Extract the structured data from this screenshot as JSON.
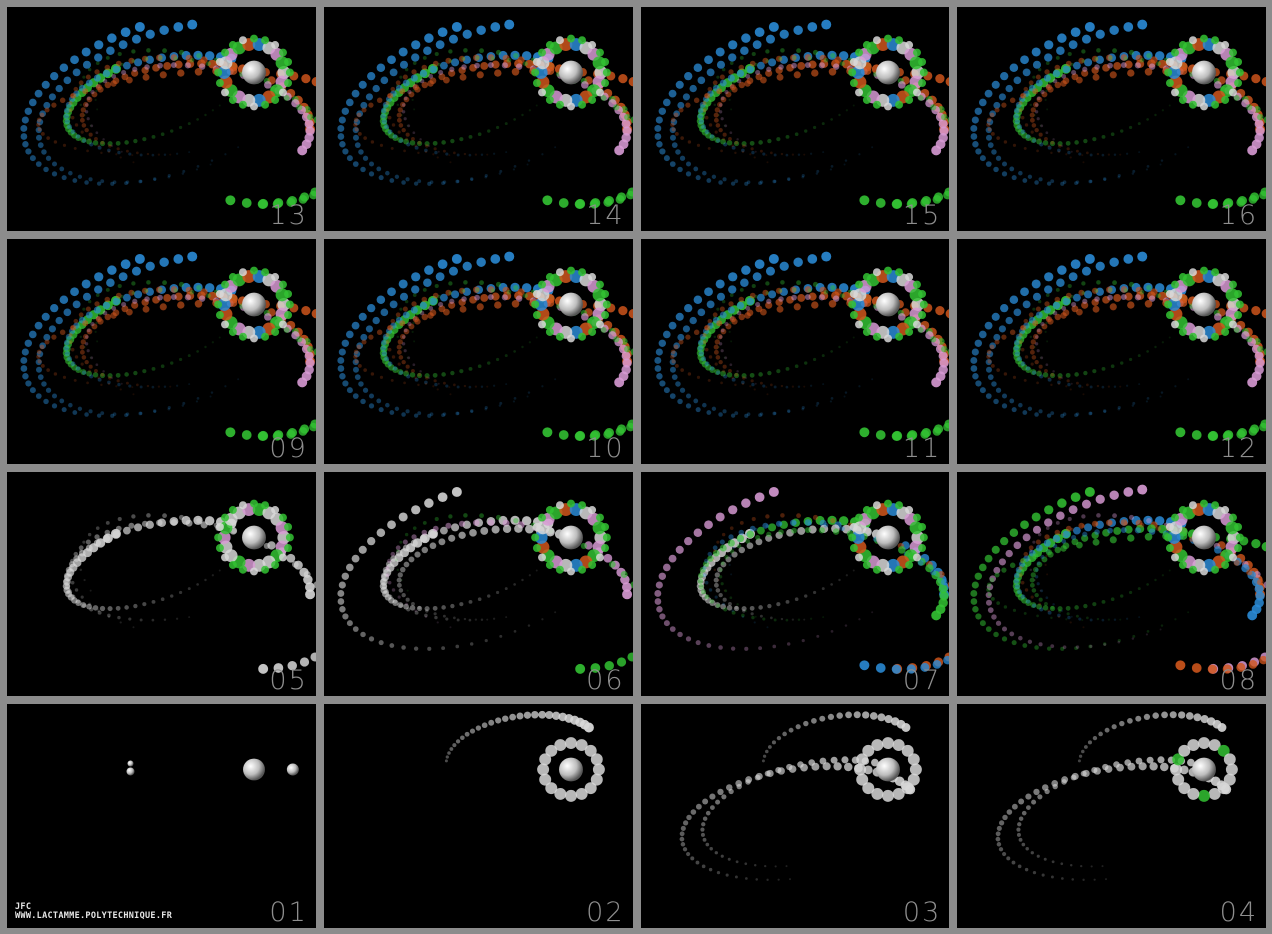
{
  "colors": {
    "background_border": "#8c8c8c",
    "panel_background": "#000000",
    "label": "#8e8e8e",
    "white_trail": "#d8d8d8",
    "green_trail": "#33c233",
    "blue_trail": "#2a8bd6",
    "orange_trail": "#d0561c",
    "pink_trail": "#d79ad4"
  },
  "panels": [
    {
      "label": "13",
      "stage": 13
    },
    {
      "label": "14",
      "stage": 14
    },
    {
      "label": "15",
      "stage": 15
    },
    {
      "label": "16",
      "stage": 16
    },
    {
      "label": "09",
      "stage": 9
    },
    {
      "label": "10",
      "stage": 10
    },
    {
      "label": "11",
      "stage": 11
    },
    {
      "label": "12",
      "stage": 12
    },
    {
      "label": "05",
      "stage": 5
    },
    {
      "label": "06",
      "stage": 6
    },
    {
      "label": "07",
      "stage": 7
    },
    {
      "label": "08",
      "stage": 8
    },
    {
      "label": "01",
      "stage": 1
    },
    {
      "label": "02",
      "stage": 2
    },
    {
      "label": "03",
      "stage": 3
    },
    {
      "label": "04",
      "stage": 4
    }
  ],
  "credit": {
    "line1": "JFC",
    "line2": "WWW.LACTAMME.POLYTECHNIQUE.FR"
  }
}
